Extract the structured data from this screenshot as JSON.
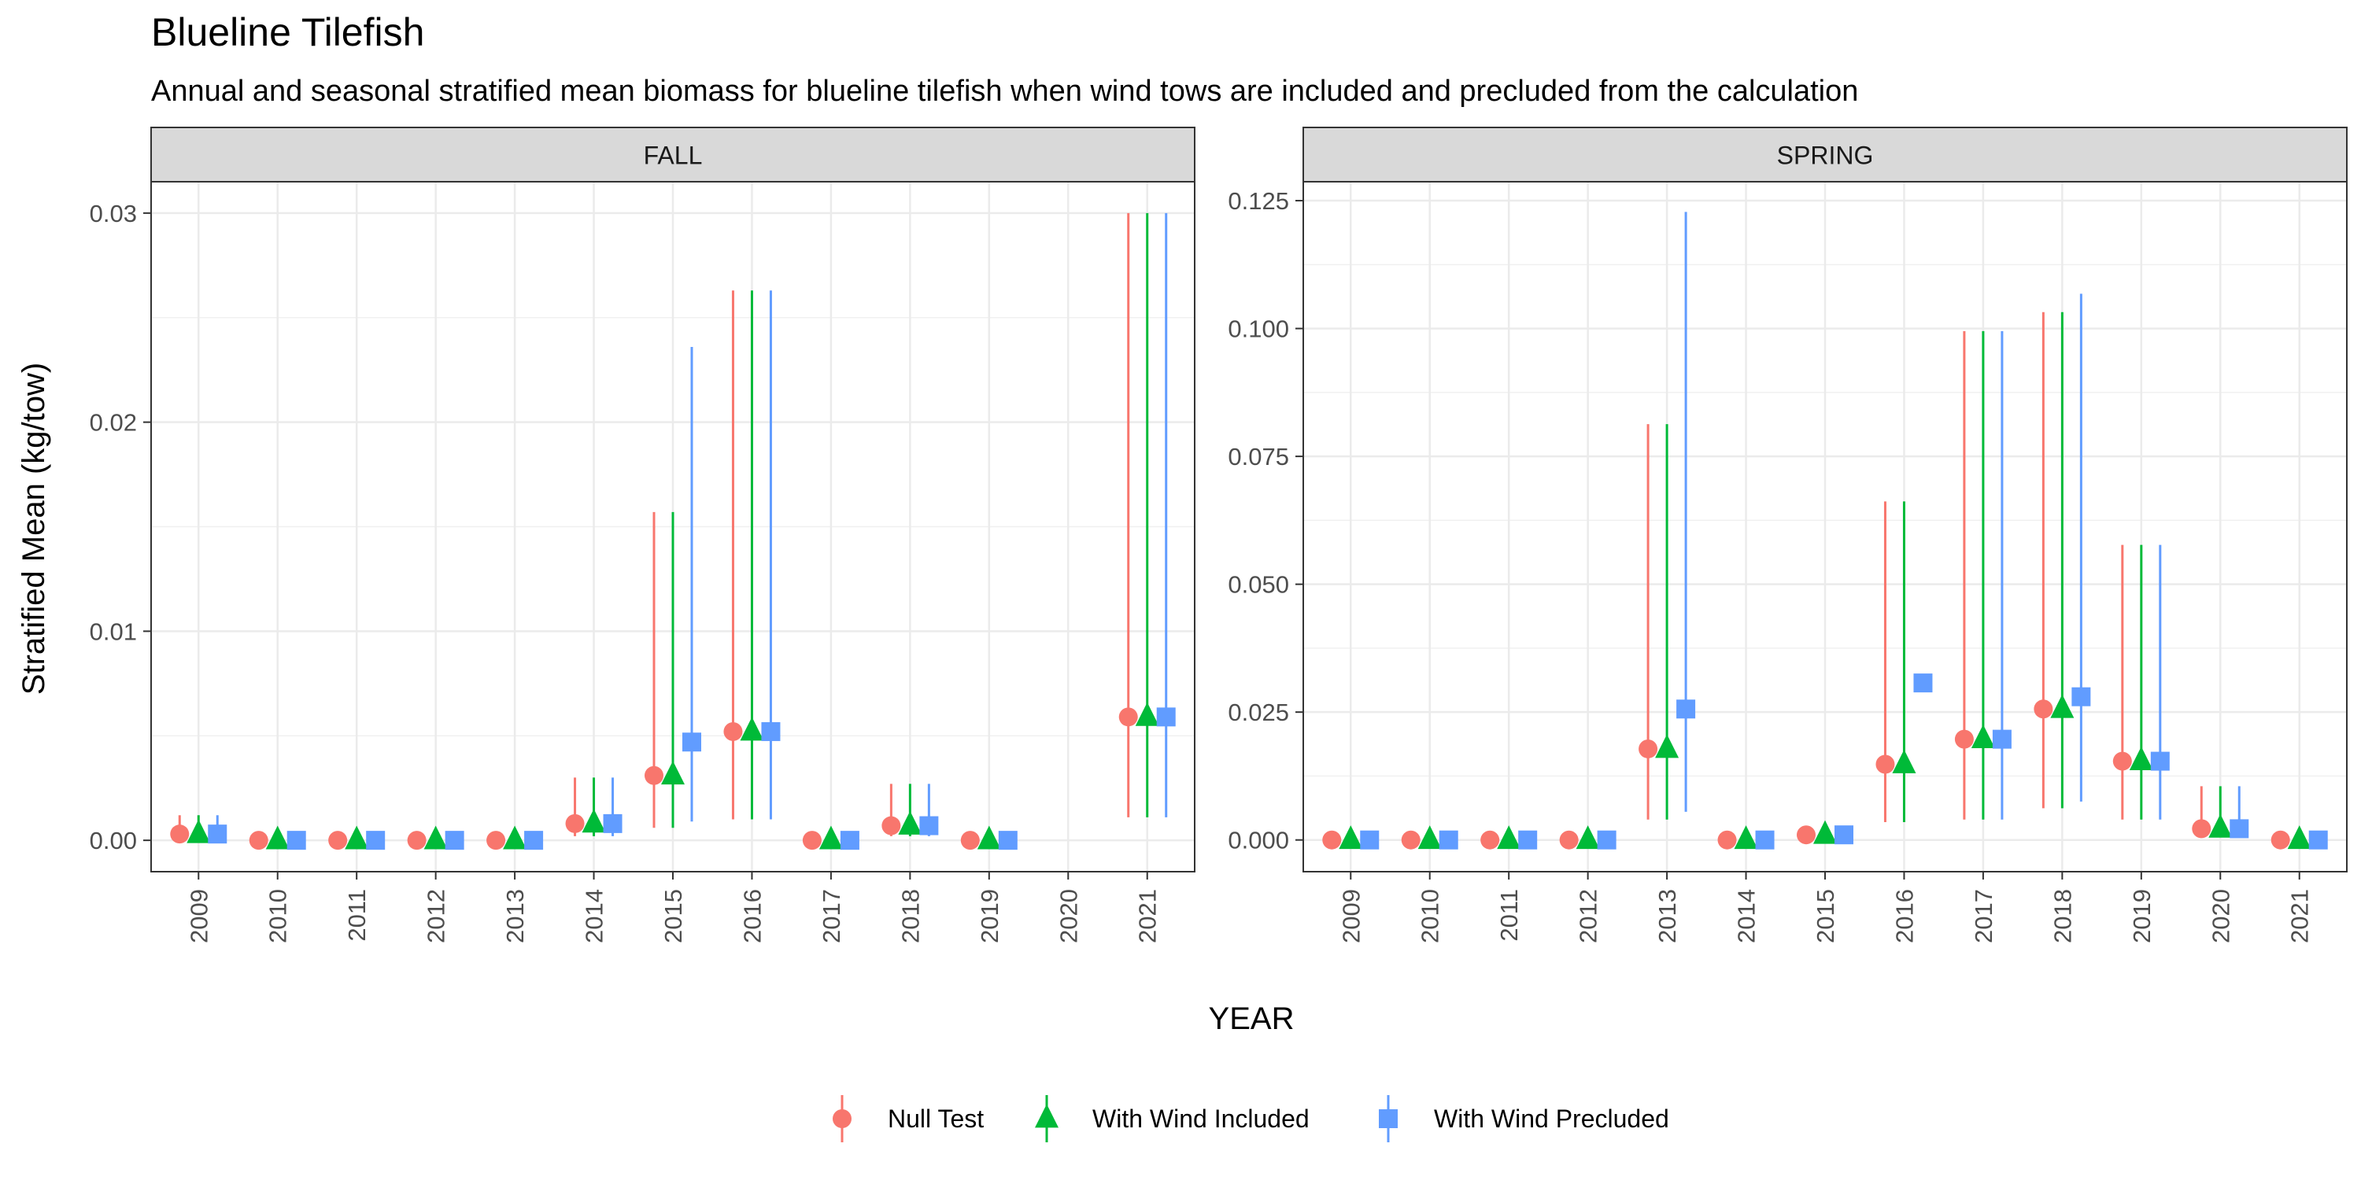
{
  "chart_data": {
    "title": "Blueline Tilefish",
    "subtitle": "Annual and seasonal stratified mean biomass for blueline tilefish when wind tows are included and precluded from the calculation",
    "xlabel": "YEAR",
    "ylabel": "Stratified Mean (kg/tow)",
    "legend_position": "bottom",
    "series": [
      {
        "name": "Null Test",
        "color": "#F8766D",
        "shape": "circle"
      },
      {
        "name": "With Wind Included",
        "color": "#00BA38",
        "shape": "triangle"
      },
      {
        "name": "With Wind Precluded",
        "color": "#619CFF",
        "shape": "square"
      }
    ],
    "panels": [
      {
        "type": "scatter",
        "strip_label": "FALL",
        "x": [
          2009,
          2010,
          2011,
          2012,
          2013,
          2014,
          2015,
          2016,
          2017,
          2018,
          2019,
          2020,
          2021
        ],
        "x_ticks": [
          "2009",
          "2010",
          "2011",
          "2012",
          "2013",
          "2014",
          "2015",
          "2016",
          "2017",
          "2018",
          "2019",
          "2020",
          "2021"
        ],
        "ylim": [
          -0.0015,
          0.0315
        ],
        "y_ticks": [
          0.0,
          0.01,
          0.02,
          0.03
        ],
        "y_tick_labels": [
          "0.00",
          "0.01",
          "0.02",
          "0.03"
        ],
        "series": [
          {
            "name": "Null Test",
            "y": [
              0.0003,
              0.0,
              0.0,
              0.0,
              0.0,
              0.0008,
              0.0031,
              0.0052,
              0.0,
              0.0007,
              0.0,
              null,
              0.0059
            ],
            "lo": [
              0.0,
              null,
              null,
              null,
              null,
              0.0002,
              0.0006,
              0.001,
              null,
              0.0002,
              null,
              null,
              0.0011
            ],
            "hi": [
              0.0012,
              null,
              null,
              null,
              null,
              0.003,
              0.0157,
              0.0263,
              null,
              0.0027,
              null,
              null,
              0.03
            ]
          },
          {
            "name": "With Wind Included",
            "y": [
              0.0003,
              0.0,
              0.0,
              0.0,
              0.0,
              0.0008,
              0.0031,
              0.0052,
              0.0,
              0.0007,
              0.0,
              null,
              0.0059
            ],
            "lo": [
              0.0,
              null,
              null,
              null,
              null,
              0.0002,
              0.0006,
              0.001,
              null,
              0.0002,
              null,
              null,
              0.0011
            ],
            "hi": [
              0.0012,
              null,
              null,
              null,
              null,
              0.003,
              0.0157,
              0.0263,
              null,
              0.0027,
              null,
              null,
              0.03
            ]
          },
          {
            "name": "With Wind Precluded",
            "y": [
              0.0003,
              0.0,
              0.0,
              0.0,
              0.0,
              0.0008,
              0.0047,
              0.0052,
              0.0,
              0.0007,
              0.0,
              null,
              0.0059
            ],
            "lo": [
              0.0,
              null,
              null,
              null,
              null,
              0.0002,
              0.0009,
              0.001,
              null,
              0.0002,
              null,
              null,
              0.0011
            ],
            "hi": [
              0.0012,
              null,
              null,
              null,
              null,
              0.003,
              0.0236,
              0.0263,
              null,
              0.0027,
              null,
              null,
              0.03
            ]
          }
        ]
      },
      {
        "type": "scatter",
        "strip_label": "SPRING",
        "x": [
          2009,
          2010,
          2011,
          2012,
          2013,
          2014,
          2015,
          2016,
          2017,
          2018,
          2019,
          2020,
          2021
        ],
        "x_ticks": [
          "2009",
          "2010",
          "2011",
          "2012",
          "2013",
          "2014",
          "2015",
          "2016",
          "2017",
          "2018",
          "2019",
          "2020",
          "2021"
        ],
        "ylim": [
          -0.0062,
          0.1287
        ],
        "y_ticks": [
          0.0,
          0.025,
          0.05,
          0.075,
          0.1,
          0.125
        ],
        "y_tick_labels": [
          "0.000",
          "0.025",
          "0.050",
          "0.075",
          "0.100",
          "0.125"
        ],
        "series": [
          {
            "name": "Null Test",
            "y": [
              0.0,
              0.0,
              0.0,
              0.0,
              0.0178,
              0.0,
              0.001,
              0.0148,
              0.0197,
              0.0256,
              0.0154,
              0.0022,
              0.0
            ],
            "lo": [
              null,
              null,
              null,
              null,
              0.004,
              null,
              null,
              0.0035,
              0.004,
              0.0062,
              0.004,
              0.0005,
              null
            ],
            "hi": [
              null,
              null,
              null,
              null,
              0.0813,
              null,
              null,
              0.0662,
              0.0995,
              0.1032,
              0.0577,
              0.0105,
              null
            ]
          },
          {
            "name": "With Wind Included",
            "y": [
              0.0,
              0.0,
              0.0,
              0.0,
              0.0178,
              0.0,
              0.001,
              0.0148,
              0.0197,
              0.0256,
              0.0154,
              0.0022,
              0.0
            ],
            "lo": [
              null,
              null,
              null,
              null,
              0.004,
              null,
              null,
              0.0035,
              0.004,
              0.0062,
              0.004,
              0.0005,
              null
            ],
            "hi": [
              null,
              null,
              null,
              null,
              0.0813,
              null,
              null,
              0.0662,
              0.0995,
              0.1032,
              0.0577,
              0.0105,
              null
            ]
          },
          {
            "name": "With Wind Precluded",
            "y": [
              0.0,
              0.0,
              0.0,
              0.0,
              0.0256,
              0.0,
              0.001,
              0.0307,
              0.0197,
              0.028,
              0.0154,
              0.0022,
              0.0
            ],
            "lo": [
              null,
              null,
              null,
              null,
              0.0055,
              null,
              null,
              null,
              0.004,
              0.0075,
              0.004,
              0.0005,
              null
            ],
            "hi": [
              null,
              null,
              null,
              null,
              0.1228,
              null,
              null,
              null,
              0.0995,
              0.1068,
              0.0577,
              0.0105,
              null
            ]
          }
        ]
      }
    ]
  }
}
